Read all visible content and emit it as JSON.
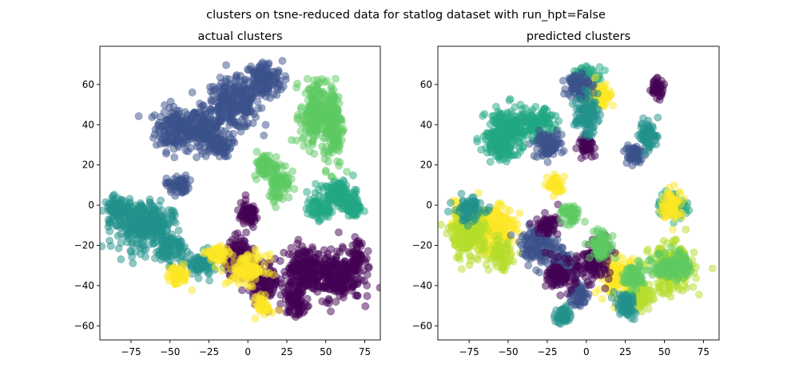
{
  "chart_data": {
    "type": "scatter",
    "suptitle": "clusters on tsne-reduced data for statlog dataset with run_hpt=False",
    "subplots": [
      {
        "title": "actual clusters",
        "xlim": [
          -95,
          85
        ],
        "ylim": [
          -67,
          79
        ],
        "xticks": [
          -75,
          -50,
          -25,
          0,
          25,
          50,
          75
        ],
        "xtick_labels": [
          "−75",
          "−50",
          "−25",
          "0",
          "25",
          "50",
          "75"
        ],
        "yticks": [
          -60,
          -40,
          -20,
          0,
          20,
          40,
          60
        ],
        "ytick_labels": [
          "−60",
          "−40",
          "−20",
          "0",
          "20",
          "40",
          "60"
        ],
        "point_alpha": 0.5,
        "clusters": [
          {
            "color": "#3b528b",
            "regions": [
              [
                -45,
                38,
                12,
                9
              ],
              [
                -28,
                38,
                8,
                7
              ],
              [
                -10,
                50,
                15,
                10
              ],
              [
                10,
                62,
                10,
                8
              ],
              [
                -20,
                30,
                8,
                5
              ],
              [
                -45,
                10,
                6,
                4
              ]
            ]
          },
          {
            "color": "#21918c",
            "regions": [
              [
                -70,
                -10,
                14,
                10
              ],
              [
                -85,
                -2,
                6,
                5
              ],
              [
                -50,
                -22,
                8,
                6
              ],
              [
                -30,
                -30,
                8,
                5
              ],
              [
                -60,
                -8,
                10,
                6
              ]
            ]
          },
          {
            "color": "#5ec962",
            "regions": [
              [
                42,
                45,
                7,
                14
              ],
              [
                55,
                40,
                5,
                18
              ],
              [
                20,
                12,
                6,
                8
              ],
              [
                10,
                20,
                5,
                5
              ]
            ]
          },
          {
            "color": "#22a884",
            "regions": [
              [
                58,
                5,
                10,
                6
              ],
              [
                45,
                -2,
                6,
                4
              ],
              [
                68,
                -2,
                4,
                4
              ]
            ]
          },
          {
            "color": "#440154",
            "regions": [
              [
                55,
                -35,
                15,
                10
              ],
              [
                35,
                -32,
                10,
                10
              ],
              [
                10,
                -38,
                8,
                8
              ],
              [
                -5,
                -25,
                8,
                7
              ],
              [
                0,
                -5,
                6,
                5
              ],
              [
                30,
                -48,
                6,
                6
              ],
              [
                70,
                -25,
                4,
                6
              ]
            ]
          },
          {
            "color": "#fde725",
            "regions": [
              [
                0,
                -32,
                10,
                6
              ],
              [
                -20,
                -25,
                6,
                4
              ],
              [
                -45,
                -35,
                6,
                4
              ],
              [
                10,
                -50,
                4,
                4
              ]
            ]
          }
        ]
      },
      {
        "title": "predicted clusters",
        "xlim": [
          -95,
          85
        ],
        "ylim": [
          -67,
          79
        ],
        "xticks": [
          -75,
          -50,
          -25,
          0,
          25,
          50,
          75
        ],
        "xtick_labels": [
          "−75",
          "−50",
          "−25",
          "0",
          "25",
          "50",
          "75"
        ],
        "yticks": [
          -60,
          -40,
          -20,
          0,
          20,
          40,
          60
        ],
        "ytick_labels": [
          "−60",
          "−40",
          "−20",
          "0",
          "20",
          "40",
          "60"
        ],
        "point_alpha": 0.5,
        "clusters": [
          {
            "color": "#22a884",
            "regions": [
              [
                -50,
                38,
                12,
                9
              ],
              [
                -30,
                40,
                8,
                6
              ],
              [
                -55,
                30,
                8,
                6
              ],
              [
                0,
                62,
                8,
                6
              ],
              [
                55,
                0,
                8,
                5
              ]
            ]
          },
          {
            "color": "#fde725",
            "regions": [
              [
                -60,
                -12,
                12,
                10
              ],
              [
                -80,
                -8,
                6,
                6
              ],
              [
                20,
                -35,
                10,
                8
              ],
              [
                10,
                55,
                6,
                5
              ],
              [
                55,
                0,
                6,
                6
              ],
              [
                -20,
                10,
                4,
                4
              ]
            ]
          },
          {
            "color": "#b5de2b",
            "regions": [
              [
                -75,
                -15,
                10,
                10
              ],
              [
                -55,
                -25,
                6,
                6
              ],
              [
                55,
                -32,
                12,
                10
              ],
              [
                35,
                -45,
                6,
                6
              ]
            ]
          },
          {
            "color": "#3b528b",
            "regions": [
              [
                -30,
                -20,
                10,
                7
              ],
              [
                -15,
                -30,
                8,
                6
              ],
              [
                -25,
                30,
                8,
                5
              ],
              [
                -5,
                60,
                6,
                6
              ],
              [
                30,
                25,
                5,
                5
              ],
              [
                -5,
                -45,
                5,
                5
              ]
            ]
          },
          {
            "color": "#440154",
            "regions": [
              [
                -15,
                -35,
                8,
                6
              ],
              [
                5,
                -28,
                8,
                8
              ],
              [
                45,
                58,
                4,
                4
              ],
              [
                -25,
                -10,
                6,
                4
              ],
              [
                0,
                30,
                4,
                4
              ]
            ]
          },
          {
            "color": "#21918c",
            "regions": [
              [
                -75,
                -2,
                8,
                5
              ],
              [
                25,
                -50,
                6,
                5
              ],
              [
                0,
                45,
                6,
                8
              ],
              [
                -15,
                -55,
                4,
                4
              ],
              [
                40,
                35,
                5,
                6
              ]
            ]
          },
          {
            "color": "#5ec962",
            "regions": [
              [
                55,
                -30,
                10,
                6
              ],
              [
                10,
                -20,
                6,
                6
              ],
              [
                30,
                -35,
                6,
                5
              ],
              [
                -10,
                -5,
                5,
                4
              ]
            ]
          }
        ]
      }
    ]
  }
}
